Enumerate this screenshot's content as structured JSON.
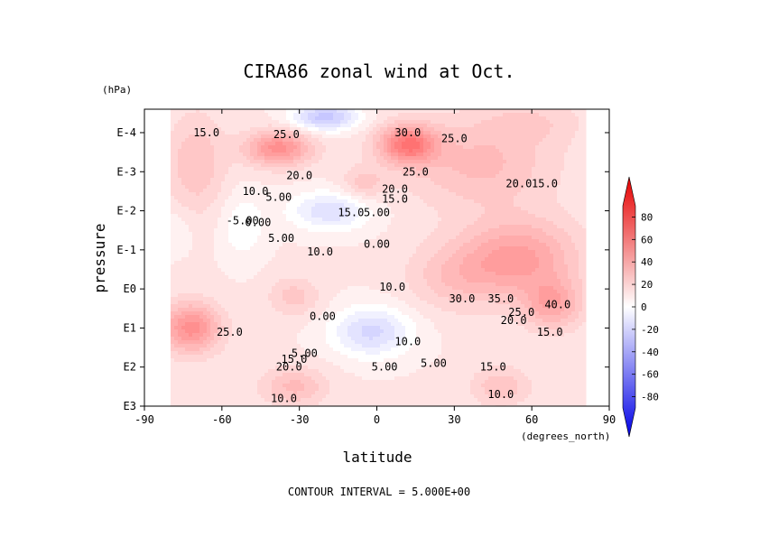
{
  "colors": {
    "positive": "#ff3333",
    "negative": "#3333ff",
    "neutral": "#ffffff",
    "contour": "#000000"
  },
  "chart_data": {
    "type": "heatmap",
    "title": "CIRA86 zonal wind at Oct.",
    "xlabel": "latitude",
    "xunits": "(degrees_north)",
    "ylabel": "pressure",
    "yunits": "(hPa)",
    "footer": "CONTOUR INTERVAL = 5.000E+00",
    "x_ticks": [
      "-90",
      "-60",
      "-30",
      "0",
      "30",
      "60",
      "90"
    ],
    "x_tick_values": [
      -90,
      -60,
      -30,
      0,
      30,
      60,
      90
    ],
    "y_ticks": [
      "E-4",
      "E-3",
      "E-2",
      "E-1",
      "E0",
      "E1",
      "E2",
      "E3"
    ],
    "y_tick_values": [
      -4,
      -3,
      -2,
      -1,
      0,
      1,
      2,
      3
    ],
    "xlim": [
      -90,
      90
    ],
    "ylim_log10_hPa": [
      3,
      -4.6
    ],
    "data_lat_range": [
      -80,
      80
    ],
    "contour_interval": 5,
    "colorbar": {
      "ticks": [
        "80",
        "60",
        "40",
        "20",
        "0",
        "-20",
        "-40",
        "-60",
        "-80"
      ],
      "range": [
        -90,
        90
      ]
    },
    "contour_labels": [
      {
        "text": "15.0",
        "lat": -66,
        "logp": -4.0
      },
      {
        "text": "25.0",
        "lat": -35,
        "logp": -3.95
      },
      {
        "text": "20.0",
        "lat": -30,
        "logp": -2.9
      },
      {
        "text": "10.0",
        "lat": -47,
        "logp": -2.5
      },
      {
        "text": "5.00",
        "lat": -38,
        "logp": -2.35
      },
      {
        "text": "30.0",
        "lat": 12,
        "logp": -4.0
      },
      {
        "text": "25.0",
        "lat": 30,
        "logp": -3.85
      },
      {
        "text": "25.0",
        "lat": 15,
        "logp": -3.0
      },
      {
        "text": "20.0",
        "lat": 7,
        "logp": -2.55
      },
      {
        "text": "15.0",
        "lat": 7,
        "logp": -2.3
      },
      {
        "text": "20.0",
        "lat": 55,
        "logp": -2.7
      },
      {
        "text": "15.0",
        "lat": 65,
        "logp": -2.7
      },
      {
        "text": "-5.00",
        "lat": -52,
        "logp": -1.75
      },
      {
        "text": "0.00",
        "lat": -46,
        "logp": -1.7
      },
      {
        "text": "15.0",
        "lat": -10,
        "logp": -1.95
      },
      {
        "text": "5.00",
        "lat": 0,
        "logp": -1.95
      },
      {
        "text": "5.00",
        "lat": -37,
        "logp": -1.3
      },
      {
        "text": "10.0",
        "lat": -22,
        "logp": -0.95
      },
      {
        "text": "0.00",
        "lat": 0,
        "logp": -1.15
      },
      {
        "text": "10.0",
        "lat": 6,
        "logp": -0.05
      },
      {
        "text": "40.0",
        "lat": 70,
        "logp": 0.4
      },
      {
        "text": "30.0",
        "lat": 33,
        "logp": 0.25
      },
      {
        "text": "35.0",
        "lat": 48,
        "logp": 0.25
      },
      {
        "text": "25.0",
        "lat": 56,
        "logp": 0.6
      },
      {
        "text": "20.0",
        "lat": 53,
        "logp": 0.8
      },
      {
        "text": "15.0",
        "lat": 67,
        "logp": 1.1
      },
      {
        "text": "25.0",
        "lat": -57,
        "logp": 1.1
      },
      {
        "text": "0.00",
        "lat": -21,
        "logp": 0.7
      },
      {
        "text": "10.0",
        "lat": 12,
        "logp": 1.35
      },
      {
        "text": "5.00",
        "lat": -28,
        "logp": 1.65
      },
      {
        "text": "15.0",
        "lat": -32,
        "logp": 1.8
      },
      {
        "text": "20.0",
        "lat": -34,
        "logp": 2.0
      },
      {
        "text": "5.00",
        "lat": 3,
        "logp": 2.0
      },
      {
        "text": "5.00",
        "lat": 22,
        "logp": 1.9
      },
      {
        "text": "15.0",
        "lat": 45,
        "logp": 2.0
      },
      {
        "text": "10.0",
        "lat": -36,
        "logp": 2.8
      },
      {
        "text": "10.0",
        "lat": 48,
        "logp": 2.7
      }
    ]
  }
}
